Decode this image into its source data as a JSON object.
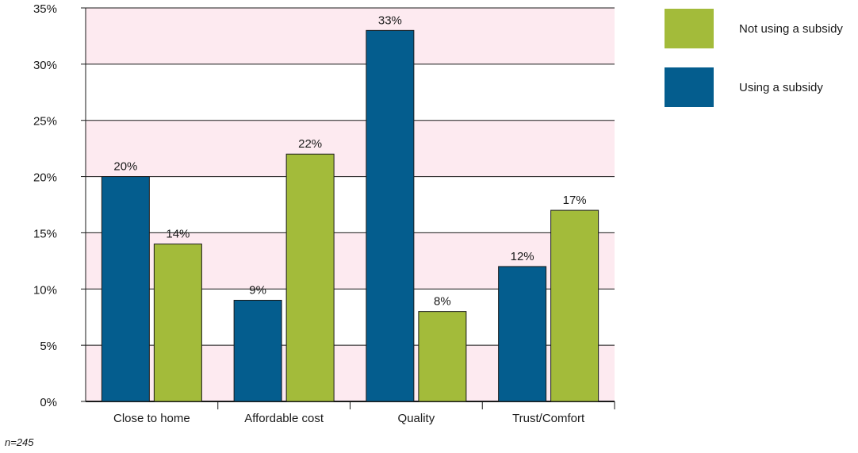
{
  "chart_data": {
    "type": "bar",
    "categories": [
      "Close to home",
      "Affordable cost",
      "Quality",
      "Trust/Comfort"
    ],
    "series": [
      {
        "name": "Using a subsidy",
        "values": [
          20,
          9,
          33,
          12
        ],
        "labels": [
          "20%",
          "9%",
          "33%",
          "12%"
        ],
        "color": "#045d8e"
      },
      {
        "name": "Not using a subsidy",
        "values": [
          14,
          22,
          8,
          17
        ],
        "labels": [
          "14%",
          "22%",
          "8%",
          "17%"
        ],
        "color": "#a3bb3a"
      }
    ],
    "y_ticks": [
      0,
      5,
      10,
      15,
      20,
      25,
      30,
      35
    ],
    "y_tick_labels": [
      "0%",
      "5%",
      "10%",
      "15%",
      "20%",
      "25%",
      "30%",
      "35%"
    ],
    "ylim": [
      0,
      35
    ],
    "grid": true,
    "band_color": "#fdeaf0",
    "legend": {
      "placement": "right",
      "entries": [
        {
          "label": "Not using a subsidy",
          "color": "#a3bb3a"
        },
        {
          "label": "Using a subsidy",
          "color": "#045d8e"
        }
      ]
    },
    "note": "n=245"
  }
}
